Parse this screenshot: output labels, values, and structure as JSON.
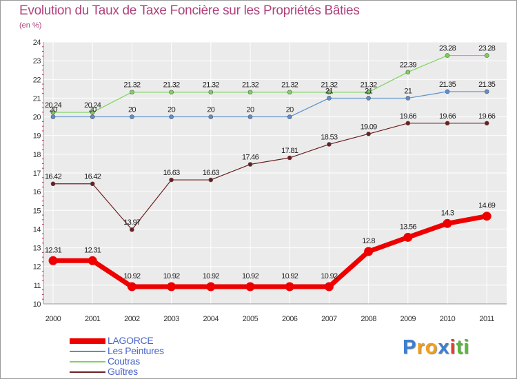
{
  "header": {
    "title": "Evolution du Taux de Taxe Foncière sur les Propriétés Bâties",
    "unit": "(en %)"
  },
  "colors": {
    "title": "#b0407a",
    "plot_bg": "#ebebeb",
    "grid": "#ffffff",
    "legend_text": "#4a66c8"
  },
  "chart_data": {
    "type": "line",
    "title": "Evolution du Taux de Taxe Foncière sur les Propriétés Bâties",
    "ylabel": "(en %)",
    "xlabel": "",
    "x": [
      "2000",
      "2001",
      "2002",
      "2003",
      "2004",
      "2005",
      "2006",
      "2007",
      "2008",
      "2009",
      "2010",
      "2011"
    ],
    "ylim": [
      10,
      24
    ],
    "yticks": [
      10,
      11,
      12,
      13,
      14,
      15,
      16,
      17,
      18,
      19,
      20,
      21,
      22,
      23,
      24
    ],
    "grid": true,
    "legend_position": "bottom-left",
    "series": [
      {
        "name": "LAGORCE",
        "color": "#ee0000",
        "values": [
          12.31,
          12.31,
          10.92,
          10.92,
          10.92,
          10.92,
          10.92,
          10.92,
          12.8,
          13.56,
          14.3,
          14.69
        ],
        "labels": [
          "12.31",
          "12.31",
          "10.92",
          "10.92",
          "10.92",
          "10.92",
          "10.92",
          "10.92",
          "12.8",
          "13.56",
          "14.3",
          "14.69"
        ]
      },
      {
        "name": "Les Peintures",
        "color": "#5b8fcf",
        "values": [
          20,
          20,
          20,
          20,
          20,
          20,
          20,
          21,
          21,
          21,
          21.35,
          21.35
        ],
        "labels": [
          "20",
          "20",
          "20",
          "20",
          "20",
          "20",
          "20",
          "21",
          "21",
          "21",
          "21.35",
          "21.35"
        ]
      },
      {
        "name": "Coutras",
        "color": "#7dd35a",
        "values": [
          20.24,
          20.24,
          21.32,
          21.32,
          21.32,
          21.32,
          21.32,
          21.32,
          21.32,
          22.39,
          23.28,
          23.28
        ],
        "labels": [
          "20.24",
          "20.24",
          "21.32",
          "21.32",
          "21.32",
          "21.32",
          "21.32",
          "21.32",
          "21.32",
          "22.39",
          "23.28",
          "23.28"
        ]
      },
      {
        "name": "Guîtres",
        "color": "#6b1f1f",
        "values": [
          16.42,
          16.42,
          13.97,
          16.63,
          16.63,
          17.46,
          17.81,
          18.53,
          19.09,
          19.66,
          19.66,
          19.66
        ],
        "labels": [
          "16.42",
          "16.42",
          "13.97",
          "16.63",
          "16.63",
          "17.46",
          "17.81",
          "18.53",
          "19.09",
          "19.66",
          "19.66",
          "19.66"
        ]
      }
    ]
  },
  "brand": {
    "letters": [
      "P",
      "r",
      "o",
      "x",
      "i",
      "t",
      "i"
    ],
    "letter_colors": [
      "#3b7fd1",
      "#f0a020",
      "#f0a020",
      "#3b7fd1",
      "#e83a2a",
      "#58b83a",
      "#58b83a"
    ]
  }
}
